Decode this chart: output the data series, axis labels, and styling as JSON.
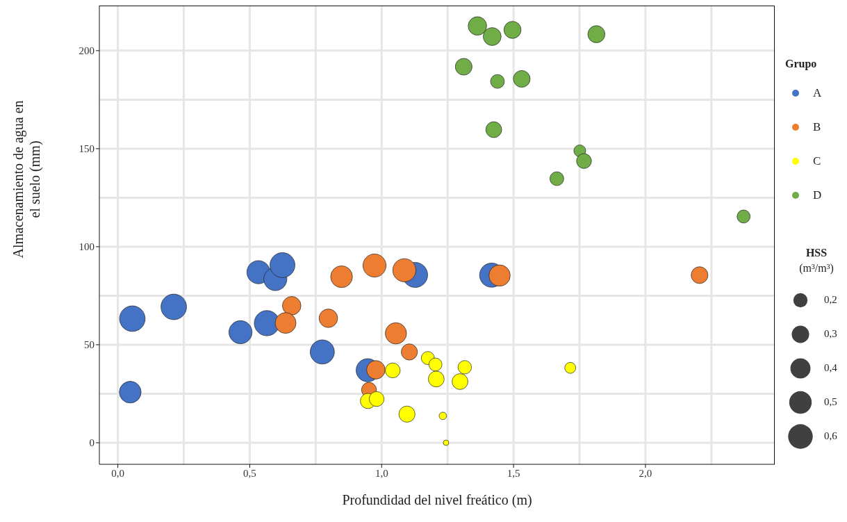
{
  "chart_data": {
    "type": "bubble",
    "xlabel": "Profundidad del nivel freático (m)",
    "ylabel": "Almacenamiento de agua en el suelo (mm)",
    "legend_title": "Grupo",
    "legend": "right",
    "marker": "circle",
    "grid": true,
    "xlim": [
      -0.07,
      2.49
    ],
    "xticks": [
      {
        "value": 0,
        "label": "0,0"
      },
      {
        "value": 0.5,
        "label": "0,5"
      },
      {
        "value": 1,
        "label": "1,0"
      },
      {
        "value": 1.5,
        "label": "1,5"
      },
      {
        "value": 2,
        "label": "2,0"
      }
    ],
    "ylim": [
      -11,
      223
    ],
    "yticks": [
      0,
      50,
      100,
      150,
      200
    ],
    "size_legend": [
      {
        "value": 0.2,
        "label": "0,2"
      },
      {
        "value": 0.3,
        "label": "0,3"
      },
      {
        "value": 0.4,
        "label": "0,4"
      },
      {
        "value": 0.5,
        "label": "0,5"
      },
      {
        "value": 0.6,
        "label": "0,6"
      }
    ],
    "annotations": [
      "HSS (m³/m³)"
    ],
    "series": [
      {
        "name": "A",
        "color": "#4472c4",
        "x": [
          0.055,
          0.047,
          0.212,
          0.465,
          0.565,
          0.533,
          0.597,
          0.624,
          0.775,
          0.947,
          1.127,
          1.417
        ],
        "values": [
          63.3,
          25.8,
          69.3,
          56.4,
          61,
          87,
          83.5,
          90.6,
          46.3,
          37,
          85.6,
          85.5
        ],
        "sizes": [
          0.65,
          0.47,
          0.65,
          0.53,
          0.63,
          0.53,
          0.53,
          0.62,
          0.58,
          0.53,
          0.62,
          0.58
        ]
      },
      {
        "name": "B",
        "color": "#ed7d31",
        "x": [
          0.659,
          0.636,
          0.798,
          0.848,
          0.973,
          1.086,
          1.054,
          1.105,
          0.978,
          0.952,
          1.447,
          2.205
        ],
        "values": [
          69.9,
          61.1,
          63.5,
          84.7,
          90.4,
          88,
          55.8,
          46.3,
          37.2,
          27,
          85.3,
          85.5
        ],
        "sizes": [
          0.34,
          0.43,
          0.34,
          0.47,
          0.53,
          0.53,
          0.45,
          0.26,
          0.34,
          0.22,
          0.45,
          0.28
        ]
      },
      {
        "name": "C",
        "color": "#ffff00",
        "x": [
          1.042,
          0.948,
          0.981,
          1.096,
          1.175,
          1.204,
          1.207,
          1.297,
          1.315,
          1.232,
          1.244,
          1.715
        ],
        "values": [
          36.9,
          21.3,
          22.3,
          14.6,
          43.2,
          39.9,
          32.5,
          31.2,
          38.5,
          13.7,
          0,
          38.2
        ],
        "sizes": [
          0.22,
          0.23,
          0.22,
          0.26,
          0.17,
          0.17,
          0.25,
          0.25,
          0.18,
          0.055,
          0.03,
          0.12
        ]
      },
      {
        "name": "D",
        "color": "#70ad47",
        "x": [
          1.363,
          1.419,
          1.496,
          1.814,
          1.311,
          1.439,
          1.531,
          1.425,
          1.751,
          1.767,
          1.664,
          2.372
        ],
        "values": [
          212.6,
          207.2,
          210.6,
          208.4,
          191.8,
          184.3,
          185.6,
          159.7,
          148.9,
          143.7,
          134.7,
          115.4
        ],
        "sizes": [
          0.34,
          0.32,
          0.29,
          0.29,
          0.28,
          0.19,
          0.28,
          0.25,
          0.14,
          0.22,
          0.19,
          0.17
        ]
      }
    ]
  }
}
